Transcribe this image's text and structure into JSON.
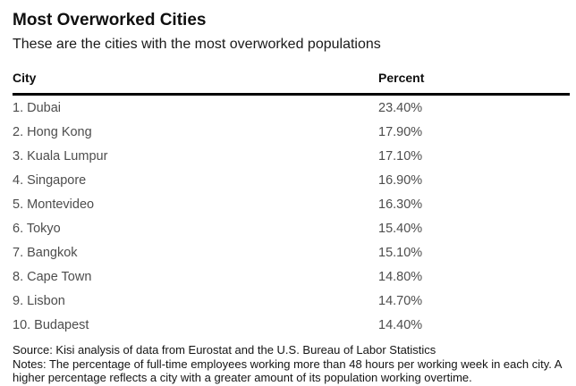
{
  "page": {
    "title": "Most Overworked Cities",
    "subtitle": "These are the cities with the most overworked populations"
  },
  "table": {
    "columns": {
      "city": "City",
      "percent": "Percent"
    },
    "rows": [
      {
        "city": "1. Dubai",
        "percent": "23.40%"
      },
      {
        "city": "2. Hong Kong",
        "percent": "17.90%"
      },
      {
        "city": "3. Kuala Lumpur",
        "percent": "17.10%"
      },
      {
        "city": "4. Singapore",
        "percent": "16.90%"
      },
      {
        "city": "5. Montevideo",
        "percent": "16.30%"
      },
      {
        "city": "6. Tokyo",
        "percent": "15.40%"
      },
      {
        "city": "7. Bangkok",
        "percent": "15.10%"
      },
      {
        "city": "8. Cape Town",
        "percent": "14.80%"
      },
      {
        "city": "9. Lisbon",
        "percent": "14.70%"
      },
      {
        "city": "10. Budapest",
        "percent": "14.40%"
      }
    ]
  },
  "footer": {
    "source": "Source: Kisi analysis of data from Eurostat and the U.S. Bureau of Labor Statistics",
    "notes": "Notes: The percentage of full-time employees working more than 48 hours per working week in each city. A higher percentage reflects a city with a greater amount of its population working overtime."
  },
  "colors": {
    "background": "#ffffff",
    "text_primary": "#0f0f0f",
    "text_rows": "#4d4d4d",
    "rule": "#000000"
  },
  "chart_data": {
    "type": "table",
    "title": "Most Overworked Cities",
    "subtitle": "These are the cities with the most overworked populations",
    "columns": [
      "City",
      "Percent"
    ],
    "categories": [
      "Dubai",
      "Hong Kong",
      "Kuala Lumpur",
      "Singapore",
      "Montevideo",
      "Tokyo",
      "Bangkok",
      "Cape Town",
      "Lisbon",
      "Budapest"
    ],
    "ranks": [
      1,
      2,
      3,
      4,
      5,
      6,
      7,
      8,
      9,
      10
    ],
    "values": [
      23.4,
      17.9,
      17.1,
      16.9,
      16.3,
      15.4,
      15.1,
      14.8,
      14.7,
      14.4
    ],
    "value_labels": [
      "23.40%",
      "17.90%",
      "17.10%",
      "16.90%",
      "16.30%",
      "15.40%",
      "15.10%",
      "14.80%",
      "14.70%",
      "14.40%"
    ],
    "value_format": "percent",
    "source": "Kisi analysis of data from Eurostat and the U.S. Bureau of Labor Statistics",
    "notes": "The percentage of full-time employees working more than 48 hours per working week in each city. A higher percentage reflects a city with a greater amount of its population working overtime."
  }
}
